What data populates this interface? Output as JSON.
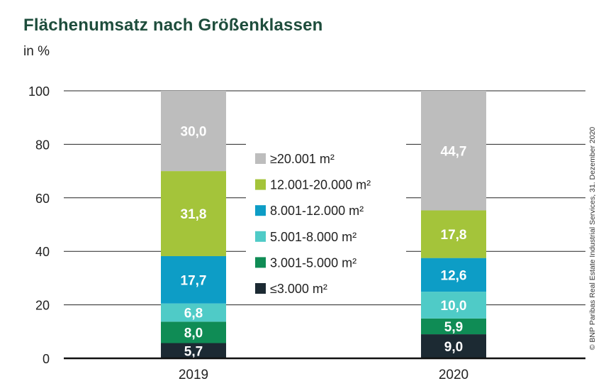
{
  "chart_data": {
    "type": "bar",
    "stacked": true,
    "title": "Flächenumsatz nach Größenklassen",
    "ylabel": "in %",
    "xlabel": "",
    "ylim": [
      0,
      100
    ],
    "yticks": [
      0,
      20,
      40,
      60,
      80,
      100
    ],
    "categories": [
      "2019",
      "2020"
    ],
    "series": [
      {
        "name": "≤3.000 m²",
        "color": "#1c2a33",
        "values": [
          5.7,
          9.0
        ],
        "labels": [
          "5,7",
          "9,0"
        ]
      },
      {
        "name": "3.001-5.000 m²",
        "color": "#0f8c55",
        "values": [
          8.0,
          5.9
        ],
        "labels": [
          "8,0",
          "5,9"
        ]
      },
      {
        "name": "5.001-8.000 m²",
        "color": "#4fcbc7",
        "values": [
          6.8,
          10.0
        ],
        "labels": [
          "6,8",
          "10,0"
        ]
      },
      {
        "name": "8.001-12.000 m²",
        "color": "#0d9dc6",
        "values": [
          17.7,
          12.6
        ],
        "labels": [
          "17,7",
          "12,6"
        ]
      },
      {
        "name": "12.001-20.000 m²",
        "color": "#a4c43a",
        "values": [
          31.8,
          17.8
        ],
        "labels": [
          "31,8",
          "17,8"
        ]
      },
      {
        "name": "≥20.001 m²",
        "color": "#bdbdbd",
        "values": [
          30.0,
          44.7
        ],
        "labels": [
          "30,0",
          "44,7"
        ]
      }
    ],
    "legend_position": "center",
    "grid": true
  },
  "credit": "© BNP Paribas Real Estate Industrial Services, 31. Dezember 2020"
}
